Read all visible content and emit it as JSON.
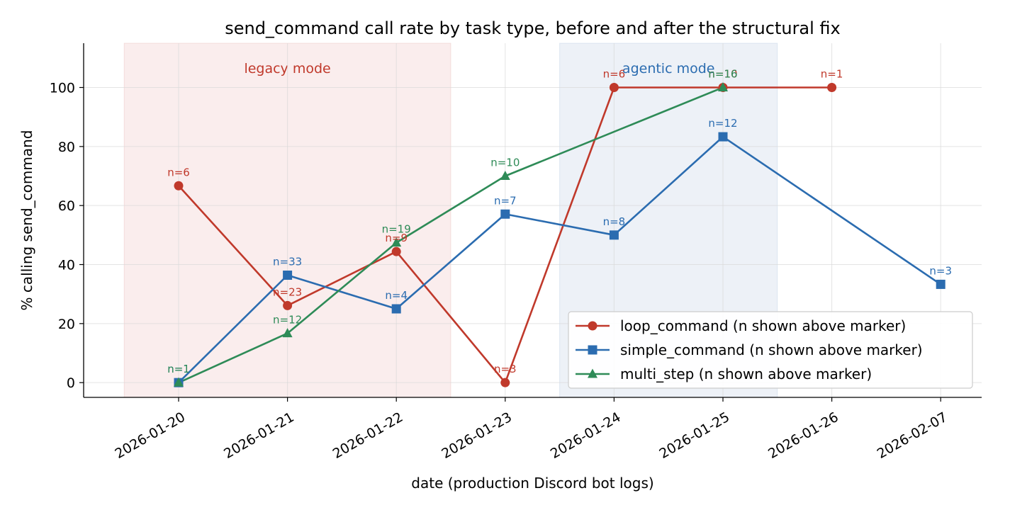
{
  "chart_data": {
    "type": "line",
    "title": "send_command call rate by task type, before and after the structural fix",
    "xlabel": "date (production Discord bot logs)",
    "ylabel": "% calling send_command",
    "categories": [
      "2026-01-20",
      "2026-01-21",
      "2026-01-22",
      "2026-01-23",
      "2026-01-24",
      "2026-01-25",
      "2026-01-26",
      "2026-02-07"
    ],
    "ylim": [
      -5,
      115
    ],
    "yticks": [
      0,
      20,
      40,
      60,
      80,
      100
    ],
    "grid": true,
    "legend_position": "lower-right",
    "regions": [
      {
        "label": "legacy mode",
        "from": 0,
        "to": 2,
        "color": "#f7e3e3",
        "text_color": "#c0392b"
      },
      {
        "label": "agentic mode",
        "from": 4,
        "to": 5,
        "color": "#e3e9f3",
        "text_color": "#2b6cb0"
      }
    ],
    "series": [
      {
        "name": "loop_command (n shown above marker)",
        "color": "#c0392b",
        "marker": "circle",
        "points": [
          {
            "x": 0,
            "y": 66.7,
            "n": "n=6"
          },
          {
            "x": 1,
            "y": 26.1,
            "n": "n=23"
          },
          {
            "x": 2,
            "y": 44.4,
            "n": "n=9"
          },
          {
            "x": 3,
            "y": 0,
            "n": "n=3"
          },
          {
            "x": 4,
            "y": 100,
            "n": "n=6"
          },
          {
            "x": 5,
            "y": 100,
            "n": "n=10"
          },
          {
            "x": 6,
            "y": 100,
            "n": "n=1"
          }
        ]
      },
      {
        "name": "simple_command (n shown above marker)",
        "color": "#2b6cb0",
        "marker": "square",
        "points": [
          {
            "x": 0,
            "y": 0,
            "n": "n=1"
          },
          {
            "x": 1,
            "y": 36.4,
            "n": "n=33"
          },
          {
            "x": 2,
            "y": 25,
            "n": "n=4"
          },
          {
            "x": 3,
            "y": 57.1,
            "n": "n=7"
          },
          {
            "x": 4,
            "y": 50,
            "n": "n=8"
          },
          {
            "x": 5,
            "y": 83.3,
            "n": "n=12"
          },
          {
            "x": 7,
            "y": 33.3,
            "n": "n=3"
          }
        ]
      },
      {
        "name": "multi_step (n shown above marker)",
        "color": "#2e8b57",
        "marker": "triangle",
        "points": [
          {
            "x": 0,
            "y": 0,
            "n": "n=1"
          },
          {
            "x": 1,
            "y": 16.7,
            "n": "n=12"
          },
          {
            "x": 2,
            "y": 47.4,
            "n": "n=19"
          },
          {
            "x": 3,
            "y": 70,
            "n": "n=10"
          },
          {
            "x": 5,
            "y": 100,
            "n": "n=16"
          }
        ]
      }
    ]
  }
}
